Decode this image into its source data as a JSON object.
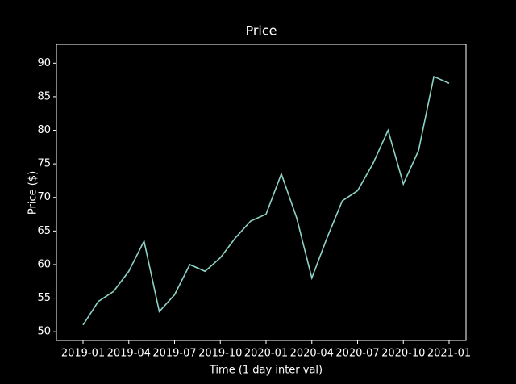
{
  "chart_data": {
    "type": "line",
    "title": "Price",
    "x_label": "Time (1 day inter val)",
    "y_label": "Price ($)",
    "x": [
      "2019-01",
      "2019-02",
      "2019-03",
      "2019-04",
      "2019-05",
      "2019-06",
      "2019-07",
      "2019-08",
      "2019-09",
      "2019-10",
      "2019-11",
      "2019-12",
      "2020-01",
      "2020-02",
      "2020-03",
      "2020-04",
      "2020-05",
      "2020-06",
      "2020-07",
      "2020-08",
      "2020-09",
      "2020-10",
      "2020-11",
      "2020-12",
      "2021-01"
    ],
    "series": [
      {
        "name": "Price",
        "color": "#8dd3c7",
        "values": [
          51,
          54.5,
          56,
          59,
          63.5,
          53,
          55.5,
          60,
          59,
          61,
          64,
          66.5,
          67.5,
          73.5,
          67,
          58,
          64,
          69.5,
          71,
          75,
          80,
          72,
          77,
          88,
          87
        ]
      }
    ],
    "xticks": [
      "2019-01",
      "2019-04",
      "2019-07",
      "2019-10",
      "2020-01",
      "2020-04",
      "2020-07",
      "2020-10",
      "2021-01"
    ],
    "ylim": [
      48.7,
      92.8
    ],
    "yticks": [
      50,
      55,
      60,
      65,
      70,
      75,
      80,
      85,
      90
    ]
  }
}
